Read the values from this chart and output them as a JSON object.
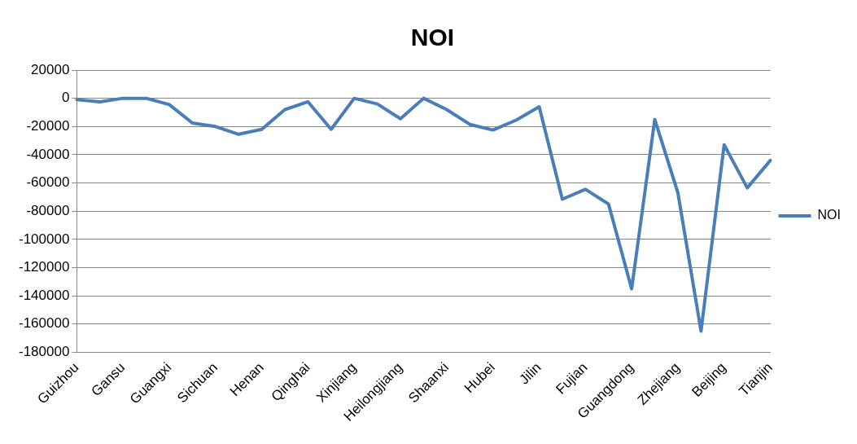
{
  "chart_data": {
    "type": "line",
    "title": "NOI",
    "categories": [
      "Guizhou",
      null,
      "Gansu",
      null,
      "Guangxi",
      null,
      "Sichuan",
      null,
      "Henan",
      null,
      "Qinghai",
      null,
      "Xinjiang",
      null,
      "Heilongjiang",
      null,
      "Shaanxi",
      null,
      "Hubei",
      null,
      "Jilin",
      null,
      "Fujian",
      null,
      "Guangdong",
      null,
      "Zhejiang",
      null,
      "Beijing",
      null,
      "Tianjin"
    ],
    "series": [
      {
        "name": "NOI",
        "color": "#4a7ebb",
        "values": [
          -1000,
          -2500,
          0,
          0,
          -4500,
          -17500,
          -20000,
          -25500,
          -22000,
          -8000,
          -2500,
          -22000,
          0,
          -4000,
          -14500,
          0,
          -8000,
          -18500,
          -22500,
          -15500,
          -6000,
          -71500,
          -64500,
          -75000,
          -135000,
          -15000,
          -67000,
          -165000,
          -33000,
          -63500,
          -44000
        ]
      }
    ],
    "ylim": [
      -180000,
      20000
    ],
    "yticks": [
      -180000,
      -160000,
      -140000,
      -120000,
      -100000,
      -80000,
      -60000,
      -40000,
      -20000,
      0,
      20000
    ],
    "grid": "y",
    "legend": "right",
    "marker": "none",
    "line_style": "solid"
  }
}
